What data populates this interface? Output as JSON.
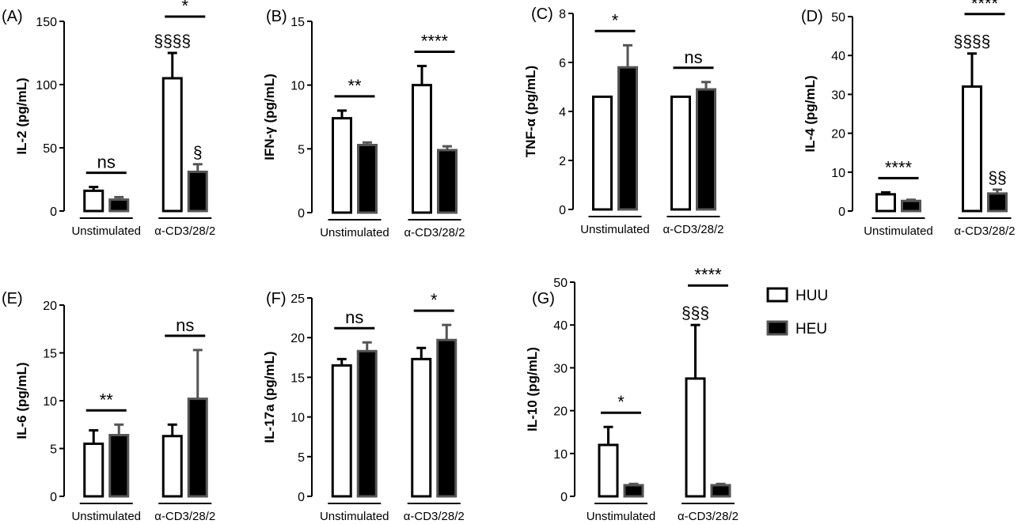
{
  "colors": {
    "huu_fill": "#ffffff",
    "heu_fill": "#000000",
    "huu_stroke": "#000000",
    "heu_stroke": "#555555"
  },
  "legend": {
    "placement": "right of panel G",
    "items": [
      {
        "name": "HUU",
        "color": "#ffffff"
      },
      {
        "name": "HEU",
        "color": "#000000"
      }
    ]
  },
  "chart_data": [
    {
      "type": "bar",
      "panel": "(A)",
      "ylabel": "IL-2 (pg/mL)",
      "ylim": [
        0,
        150
      ],
      "yticks": [
        0,
        50,
        100,
        150
      ],
      "groups": [
        "Unstimulated",
        "α-CD3/28/2"
      ],
      "series": [
        {
          "name": "HUU",
          "values": [
            16,
            105
          ],
          "errors": [
            3,
            20
          ],
          "marks": [
            "",
            "§§§§"
          ]
        },
        {
          "name": "HEU",
          "values": [
            9,
            31
          ],
          "errors": [
            2,
            6
          ],
          "marks": [
            "",
            "§"
          ]
        }
      ],
      "group_sig": [
        "ns",
        "*"
      ]
    },
    {
      "type": "bar",
      "panel": "(B)",
      "ylabel": "IFN-γ (pg/mL)",
      "ylim": [
        0,
        15
      ],
      "yticks": [
        0,
        5,
        10,
        15
      ],
      "groups": [
        "Unstimulated",
        "α-CD3/28/2"
      ],
      "series": [
        {
          "name": "HUU",
          "values": [
            7.4,
            10.0
          ],
          "errors": [
            0.6,
            1.5
          ],
          "marks": [
            "",
            ""
          ]
        },
        {
          "name": "HEU",
          "values": [
            5.3,
            4.9
          ],
          "errors": [
            0.2,
            0.3
          ],
          "marks": [
            "",
            ""
          ]
        }
      ],
      "group_sig": [
        "**",
        "****"
      ]
    },
    {
      "type": "bar",
      "panel": "(C)",
      "ylabel": "TNF-α (pg/mL)",
      "ylim": [
        0,
        8
      ],
      "yticks": [
        0,
        2,
        4,
        6,
        8
      ],
      "groups": [
        "Unstimulated",
        "α-CD3/28/2"
      ],
      "series": [
        {
          "name": "HUU",
          "values": [
            4.6,
            4.6
          ],
          "errors": [
            0,
            0
          ],
          "marks": [
            "",
            ""
          ]
        },
        {
          "name": "HEU",
          "values": [
            5.8,
            4.9
          ],
          "errors": [
            0.9,
            0.3
          ],
          "marks": [
            "",
            ""
          ]
        }
      ],
      "group_sig": [
        "*",
        "ns"
      ]
    },
    {
      "type": "bar",
      "panel": "(D)",
      "ylabel": "IL-4 (pg/mL)",
      "ylim": [
        0,
        50
      ],
      "yticks": [
        0,
        10,
        20,
        30,
        40,
        50
      ],
      "groups": [
        "Unstimulated",
        "α-CD3/28/2"
      ],
      "series": [
        {
          "name": "HUU",
          "values": [
            4.3,
            32
          ],
          "errors": [
            0.5,
            8.5
          ],
          "marks": [
            "",
            "§§§§"
          ]
        },
        {
          "name": "HEU",
          "values": [
            2.6,
            4.5
          ],
          "errors": [
            0.3,
            1
          ],
          "marks": [
            "",
            "§§"
          ]
        }
      ],
      "group_sig": [
        "****",
        "****"
      ]
    },
    {
      "type": "bar",
      "panel": "(E)",
      "ylabel": "IL-6 (pg/mL)",
      "ylim": [
        0,
        20
      ],
      "yticks": [
        0,
        5,
        10,
        15,
        20
      ],
      "groups": [
        "Unstimulated",
        "α-CD3/28/2"
      ],
      "series": [
        {
          "name": "HUU",
          "values": [
            5.5,
            6.3
          ],
          "errors": [
            1.4,
            1.2
          ],
          "marks": [
            "",
            ""
          ]
        },
        {
          "name": "HEU",
          "values": [
            6.4,
            10.2
          ],
          "errors": [
            1.1,
            5.1
          ],
          "marks": [
            "",
            ""
          ]
        }
      ],
      "group_sig": [
        "**",
        "ns"
      ]
    },
    {
      "type": "bar",
      "panel": "(F)",
      "ylabel": "IL-17a (pg/mL)",
      "ylim": [
        0,
        25
      ],
      "yticks": [
        0,
        5,
        10,
        15,
        20,
        25
      ],
      "groups": [
        "Unstimulated",
        "α-CD3/28/2"
      ],
      "series": [
        {
          "name": "HUU",
          "values": [
            16.5,
            17.3
          ],
          "errors": [
            0.8,
            1.4
          ],
          "marks": [
            "",
            ""
          ]
        },
        {
          "name": "HEU",
          "values": [
            18.3,
            19.7
          ],
          "errors": [
            1.1,
            1.9
          ],
          "marks": [
            "",
            ""
          ]
        }
      ],
      "group_sig": [
        "ns",
        "*"
      ]
    },
    {
      "type": "bar",
      "panel": "(G)",
      "ylabel": "IL-10 (pg/mL)",
      "ylim": [
        0,
        50
      ],
      "yticks": [
        0,
        10,
        20,
        30,
        40,
        50
      ],
      "groups": [
        "Unstimulated",
        "α-CD3/28/2"
      ],
      "series": [
        {
          "name": "HUU",
          "values": [
            12,
            27.5
          ],
          "errors": [
            4.2,
            12.5
          ],
          "marks": [
            "",
            "§§§"
          ]
        },
        {
          "name": "HEU",
          "values": [
            2.6,
            2.6
          ],
          "errors": [
            0.3,
            0.3
          ],
          "marks": [
            "",
            ""
          ]
        }
      ],
      "group_sig": [
        "*",
        "****"
      ]
    }
  ]
}
